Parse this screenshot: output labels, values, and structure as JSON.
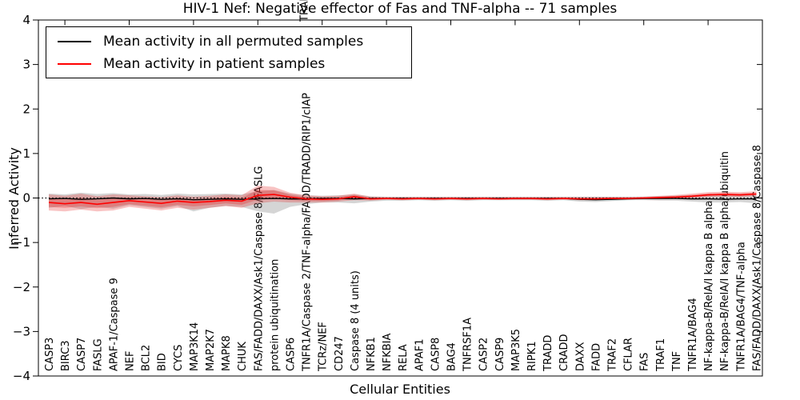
{
  "title": "HIV-1 Nef: Negative effector of Fas and TNF-alpha -- 71 samples",
  "axes": {
    "ylabel": "Inferred Activity",
    "xlabel": "Cellular Entities",
    "yticks": [
      4,
      3,
      2,
      1,
      0,
      -1,
      -2,
      -3,
      -4
    ]
  },
  "annotation_top": "TRAF",
  "legend": {
    "entries": [
      {
        "label": "Mean activity in all permuted samples",
        "color": "#000000"
      },
      {
        "label": "Mean activity in patient samples",
        "color": "#ff0000"
      }
    ]
  },
  "chart_data": {
    "type": "line",
    "title": "HIV-1 Nef: Negative effector of Fas and TNF-alpha -- 71 samples",
    "xlabel": "Cellular Entities",
    "ylabel": "Inferred Activity",
    "ylim": [
      -4,
      4
    ],
    "grid": false,
    "zero_line": true,
    "legend_position": "upper left",
    "sample_count": 71,
    "categories": [
      "CASP3",
      "BIRC3",
      "CASP7",
      "FASLG",
      "APAF-1/Caspase 9",
      "NEF",
      "BCL2",
      "BID",
      "CYCS",
      "MAP3K14",
      "MAP2K7",
      "MAPK8",
      "CHUK",
      "FAS/FADD/DAXX/Ask1/Caspase 8/FASLG",
      "protein ubiquitination",
      "CASP6",
      "TNFR1A/Caspase 2/TNF-alpha/FADD/TRADD/RIP1/cIAP",
      "TCRz/NEF",
      "CD247",
      "Caspase 8 (4 units)",
      "NFKB1",
      "NFKBIA",
      "RELA",
      "APAF1",
      "CASP8",
      "BAG4",
      "TNFRSF1A",
      "CASP2",
      "CASP9",
      "MAP3K5",
      "RIPK1",
      "TRADD",
      "CRADD",
      "DAXX",
      "FADD",
      "TRAF2",
      "CFLAR",
      "FAS",
      "TRAF1",
      "TNF",
      "TNFR1A/BAG4",
      "NF-kappa-B/RelA/I kappa B alpha",
      "NF-kappa-B/RelA/I kappa B alpha/ubiquitin",
      "TNFR1A/BAG4/TNF-alpha",
      "FAS/FADD/DAXX/Ask1/Caspase 8/Caspase 8"
    ],
    "series": [
      {
        "name": "Mean activity in all permuted samples",
        "color": "#000000",
        "band_color": "rgba(115,115,115,0.30)",
        "values": [
          -0.02,
          -0.01,
          -0.03,
          -0.02,
          0.0,
          -0.02,
          -0.01,
          -0.03,
          -0.02,
          -0.04,
          -0.03,
          -0.02,
          -0.03,
          -0.02,
          -0.01,
          -0.02,
          -0.02,
          -0.01,
          -0.01,
          -0.02,
          -0.01,
          -0.01,
          -0.01,
          -0.01,
          -0.01,
          -0.01,
          -0.01,
          -0.01,
          -0.01,
          -0.01,
          -0.01,
          -0.01,
          -0.01,
          -0.03,
          -0.04,
          -0.03,
          -0.02,
          -0.01,
          -0.01,
          -0.01,
          -0.02,
          -0.02,
          -0.03,
          -0.02,
          -0.02
        ],
        "band_upper": [
          0.1,
          0.08,
          0.12,
          0.09,
          0.11,
          0.08,
          0.09,
          0.07,
          0.1,
          0.08,
          0.09,
          0.1,
          0.08,
          0.15,
          0.18,
          0.1,
          0.06,
          0.05,
          0.06,
          0.08,
          0.04,
          0.03,
          0.03,
          0.03,
          0.03,
          0.03,
          0.03,
          0.03,
          0.03,
          0.03,
          0.03,
          0.03,
          0.03,
          0.03,
          0.03,
          0.03,
          0.03,
          0.03,
          0.04,
          0.05,
          0.06,
          0.08,
          0.08,
          0.07,
          0.09
        ],
        "band_lower": [
          -0.22,
          -0.18,
          -0.25,
          -0.2,
          -0.24,
          -0.16,
          -0.2,
          -0.24,
          -0.18,
          -0.3,
          -0.22,
          -0.18,
          -0.2,
          -0.3,
          -0.35,
          -0.2,
          -0.14,
          -0.1,
          -0.1,
          -0.12,
          -0.08,
          -0.06,
          -0.06,
          -0.05,
          -0.06,
          -0.05,
          -0.06,
          -0.05,
          -0.05,
          -0.05,
          -0.05,
          -0.06,
          -0.05,
          -0.08,
          -0.09,
          -0.07,
          -0.05,
          -0.05,
          -0.06,
          -0.06,
          -0.08,
          -0.1,
          -0.1,
          -0.09,
          -0.12
        ]
      },
      {
        "name": "Mean activity in patient samples",
        "color": "#ff0000",
        "band_color": "rgba(230,40,40,0.28)",
        "values": [
          -0.1,
          -0.13,
          -0.1,
          -0.14,
          -0.1,
          -0.06,
          -0.09,
          -0.12,
          -0.07,
          -0.1,
          -0.08,
          -0.05,
          -0.07,
          0.06,
          0.08,
          0.02,
          -0.02,
          -0.03,
          -0.02,
          0.03,
          -0.02,
          -0.01,
          -0.02,
          -0.01,
          -0.02,
          -0.01,
          -0.02,
          -0.01,
          -0.02,
          -0.01,
          -0.01,
          -0.02,
          -0.01,
          -0.02,
          -0.02,
          -0.01,
          -0.01,
          0.0,
          0.01,
          0.02,
          0.04,
          0.07,
          0.08,
          0.07,
          0.09
        ],
        "band_upper": [
          0.08,
          0.05,
          0.1,
          0.04,
          0.08,
          0.06,
          0.04,
          0.02,
          0.06,
          0.03,
          0.05,
          0.08,
          0.06,
          0.28,
          0.25,
          0.12,
          0.06,
          0.04,
          0.05,
          0.1,
          0.03,
          0.02,
          0.02,
          0.02,
          0.02,
          0.02,
          0.02,
          0.02,
          0.02,
          0.02,
          0.02,
          0.02,
          0.02,
          0.02,
          0.02,
          0.02,
          0.02,
          0.03,
          0.05,
          0.07,
          0.1,
          0.13,
          0.14,
          0.13,
          0.15
        ],
        "band_lower": [
          -0.28,
          -0.3,
          -0.26,
          -0.3,
          -0.28,
          -0.2,
          -0.24,
          -0.28,
          -0.22,
          -0.26,
          -0.22,
          -0.18,
          -0.22,
          -0.12,
          -0.08,
          -0.1,
          -0.1,
          -0.1,
          -0.08,
          -0.05,
          -0.06,
          -0.04,
          -0.05,
          -0.04,
          -0.05,
          -0.04,
          -0.05,
          -0.04,
          -0.04,
          -0.04,
          -0.04,
          -0.05,
          -0.04,
          -0.05,
          -0.05,
          -0.04,
          -0.04,
          -0.03,
          -0.03,
          -0.02,
          0.0,
          0.02,
          0.03,
          0.02,
          0.04
        ]
      }
    ]
  }
}
